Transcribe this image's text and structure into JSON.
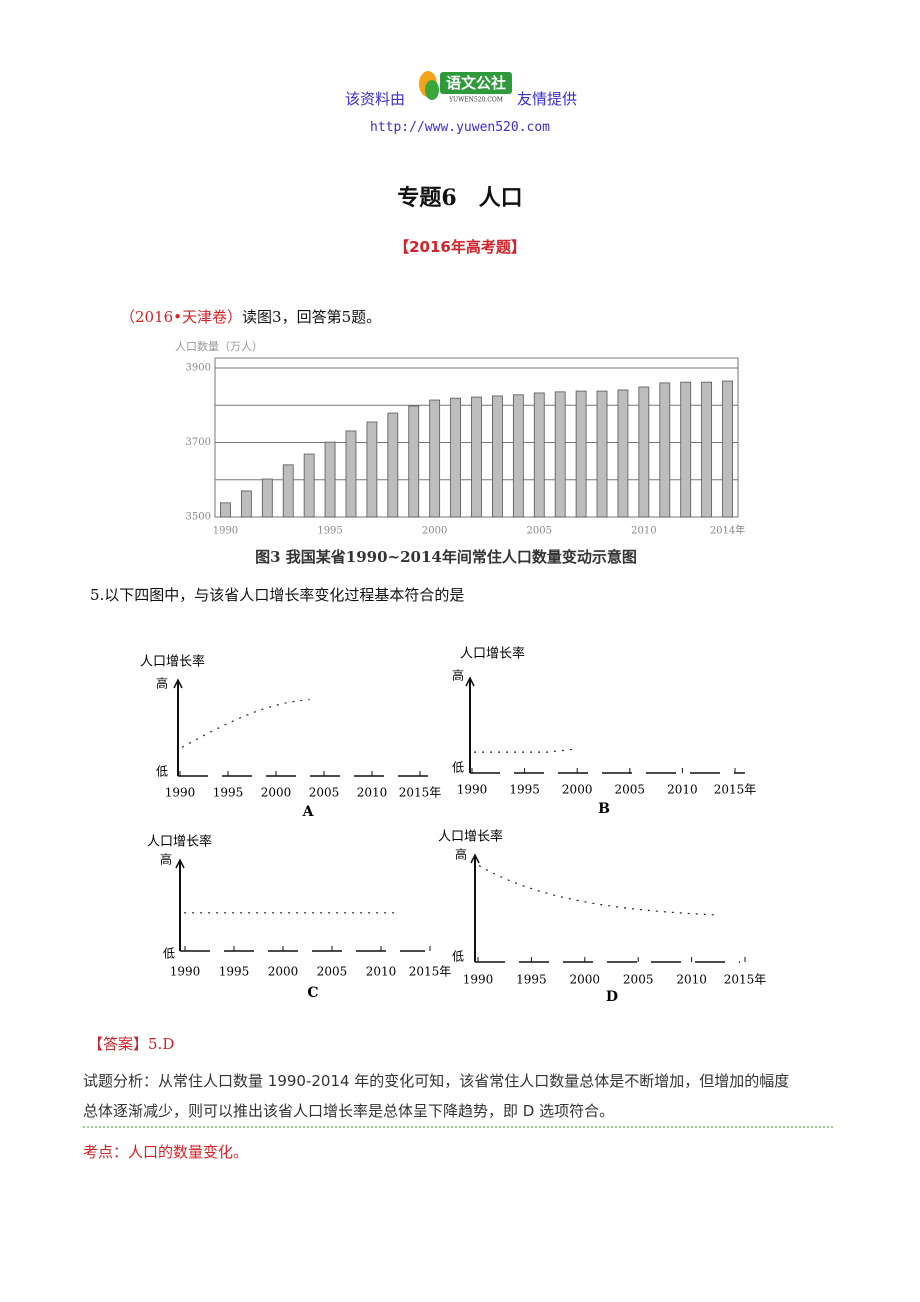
{
  "header": {
    "lead": "该资料由",
    "logo_name": "语文公社",
    "logo_site": "YUWEN520.COM",
    "tail": "友情提供",
    "url": "http://www.yuwen520.com"
  },
  "title": "专题6　人口",
  "section": "【2016年高考题】",
  "intro": {
    "source": "（2016•天津卷）",
    "text": "读图3，回答第5题。"
  },
  "chart_data": {
    "type": "bar",
    "y_axis_title": "人口数量（万人）",
    "categories": [
      "1990",
      null,
      null,
      null,
      null,
      "1995",
      null,
      null,
      null,
      null,
      "2000",
      null,
      null,
      null,
      null,
      "2005",
      null,
      null,
      null,
      null,
      "2010",
      null,
      null,
      null,
      "2014年"
    ],
    "values": [
      3538,
      3570,
      3602,
      3640,
      3669,
      3701,
      3731,
      3755,
      3779,
      3798,
      3814,
      3819,
      3822,
      3825,
      3828,
      3833,
      3836,
      3838,
      3838,
      3841,
      3849,
      3860,
      3862,
      3862,
      3865
    ],
    "color": "#bdbdbd",
    "ylim": [
      3500,
      3900
    ],
    "yticks": [
      3500,
      3700,
      3900
    ],
    "gridlines": [
      3600,
      3800
    ],
    "caption": "图3  我国某省1990~2014年间常住人口数量变动示意图"
  },
  "question": "5.以下四图中，与该省人口增长率变化过程基本符合的是",
  "options": [
    {
      "y_label": "人口增长率",
      "high": "高",
      "low": "低",
      "years": [
        "1990",
        "1995",
        "2000",
        "2005",
        "2010",
        "2015年"
      ],
      "letter": "A"
    },
    {
      "y_label": "人口增长率",
      "high": "高",
      "low": "低",
      "years": [
        "1990",
        "1995",
        "2000",
        "2005",
        "2010",
        "2015年"
      ],
      "letter": "B"
    },
    {
      "y_label": "人口增长率",
      "high": "高",
      "low": "低",
      "years": [
        "1990",
        "1995",
        "2000",
        "2005",
        "2010",
        "2015年"
      ],
      "letter": "C"
    },
    {
      "y_label": "人口增长率",
      "high": "高",
      "low": "低",
      "years": [
        "1990",
        "1995",
        "2000",
        "2005",
        "2010",
        "2015年"
      ],
      "letter": "D"
    }
  ],
  "answer": {
    "label": "【答案】",
    "text": "5.D"
  },
  "analysis": [
    "试题分析：从常住人口数量 1990-2014 年的变化可知，该省常住人口数量总体是不断增加，但增加的幅度",
    "总体逐渐减少，则可以推出该省人口增长率是总体呈下降趋势，即 D 选项符合。"
  ],
  "note": "考点：人口的数量变化。"
}
